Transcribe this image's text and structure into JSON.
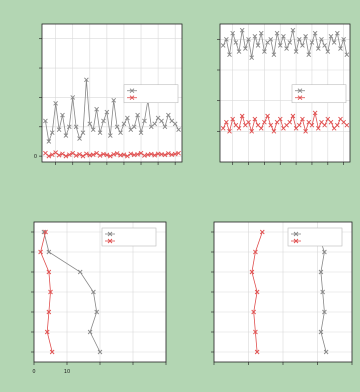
{
  "colors": {
    "background": "#b3d6b3",
    "panel": "#ffffff",
    "grid": "#d9d9d9",
    "series_gray": "#888888",
    "series_red": "#e05050"
  },
  "chart_data": [
    {
      "type": "line",
      "title": "",
      "subtitle": "",
      "xlabel": "",
      "ylabel": "",
      "grid": true,
      "legend": "center-right",
      "x": [
        1,
        2,
        3,
        4,
        5,
        6,
        7,
        8,
        9,
        10,
        11,
        12,
        13,
        14,
        15,
        16,
        17,
        18,
        19,
        20,
        21,
        22,
        23,
        24,
        25,
        26,
        27,
        28,
        29,
        30,
        31,
        32,
        33,
        34,
        35,
        36,
        37,
        38,
        39,
        40
      ],
      "xticks": [
        4,
        9,
        14,
        19,
        24,
        29,
        34,
        39
      ],
      "xticklabels": [
        "",
        "",
        "",
        "",
        "",
        "",
        "",
        ""
      ],
      "ylim": [
        -0.2,
        4.5
      ],
      "yticks": [
        0,
        1,
        2,
        3,
        4
      ],
      "yticklabels": [
        "0",
        "",
        "",
        "",
        ""
      ],
      "series": [
        {
          "name": "",
          "color": "#888888",
          "marker": "x",
          "values": [
            1.2,
            0.5,
            0.8,
            1.8,
            0.9,
            1.4,
            0.7,
            1.0,
            2.0,
            1.0,
            0.6,
            0.8,
            2.6,
            1.1,
            0.9,
            1.6,
            0.8,
            1.2,
            1.5,
            0.7,
            1.9,
            1.0,
            0.8,
            1.1,
            1.3,
            0.9,
            1.0,
            1.4,
            0.8,
            1.2,
            1.9,
            1.0,
            1.1,
            1.3,
            1.2,
            1.0,
            1.4,
            1.2,
            1.1,
            0.9
          ]
        },
        {
          "name": "",
          "color": "#e05050",
          "marker": "x",
          "values": [
            0.1,
            0.0,
            0.05,
            0.12,
            0.03,
            0.08,
            0.0,
            0.05,
            0.1,
            0.02,
            0.06,
            0.0,
            0.08,
            0.03,
            0.05,
            0.1,
            0.02,
            0.07,
            0.04,
            0.0,
            0.06,
            0.09,
            0.03,
            0.05,
            0.0,
            0.08,
            0.04,
            0.06,
            0.1,
            0.02,
            0.05,
            0.07,
            0.03,
            0.08,
            0.06,
            0.04,
            0.09,
            0.05,
            0.07,
            0.1
          ]
        }
      ]
    },
    {
      "type": "line",
      "title": "",
      "subtitle": "",
      "xlabel": "",
      "ylabel": "",
      "grid": true,
      "legend": "center-right",
      "x": [
        1,
        2,
        3,
        4,
        5,
        6,
        7,
        8,
        9,
        10,
        11,
        12,
        13,
        14,
        15,
        16,
        17,
        18,
        19,
        20,
        21,
        22,
        23,
        24,
        25,
        26,
        27,
        28,
        29,
        30,
        31,
        32,
        33,
        34,
        35,
        36,
        37,
        38,
        39,
        40
      ],
      "xticks": [
        4,
        9,
        14,
        19,
        24,
        29,
        34,
        39
      ],
      "xticklabels": [
        "",
        "",
        "",
        "",
        "",
        "",
        "",
        ""
      ],
      "ylim": [
        0,
        4.5
      ],
      "yticks": [
        1,
        2,
        3,
        4
      ],
      "yticklabels": [
        "",
        "",
        "",
        ""
      ],
      "series": [
        {
          "name": "",
          "color": "#888888",
          "marker": "x",
          "values": [
            3.8,
            4.0,
            3.5,
            4.2,
            3.9,
            3.6,
            4.3,
            3.7,
            4.0,
            3.4,
            4.1,
            3.8,
            4.2,
            3.6,
            3.9,
            4.0,
            3.5,
            4.2,
            3.8,
            4.1,
            3.7,
            3.9,
            4.3,
            3.6,
            4.0,
            3.8,
            4.1,
            3.5,
            3.9,
            4.2,
            3.7,
            4.0,
            3.8,
            3.6,
            4.1,
            3.9,
            4.2,
            3.7,
            4.0,
            3.5
          ]
        },
        {
          "name": "",
          "color": "#e05050",
          "marker": "x",
          "values": [
            1.1,
            1.3,
            1.0,
            1.4,
            1.2,
            1.1,
            1.5,
            1.2,
            1.3,
            1.0,
            1.4,
            1.2,
            1.1,
            1.3,
            1.5,
            1.2,
            1.0,
            1.3,
            1.4,
            1.1,
            1.2,
            1.3,
            1.5,
            1.1,
            1.2,
            1.4,
            1.0,
            1.3,
            1.2,
            1.6,
            1.1,
            1.3,
            1.2,
            1.4,
            1.3,
            1.1,
            1.2,
            1.4,
            1.3,
            1.2
          ]
        }
      ]
    },
    {
      "type": "line",
      "title": "",
      "subtitle": "",
      "xlabel": "",
      "ylabel": "",
      "grid": true,
      "legend": "top-right",
      "xlim": [
        0,
        40
      ],
      "xticks": [
        0,
        10,
        20,
        30,
        40
      ],
      "xticklabels": [
        "0",
        "10",
        "",
        "",
        ""
      ],
      "ylim": [
        0.5,
        7.5
      ],
      "yticks": [
        1,
        2,
        3,
        4,
        5,
        6,
        7
      ],
      "yticklabels": [
        "",
        "",
        "",
        "",
        "",
        "",
        ""
      ],
      "series": [
        {
          "name": "",
          "color": "#888888",
          "marker": "x",
          "points": [
            [
              3.0,
              7
            ],
            [
              4.5,
              6
            ],
            [
              14.0,
              5
            ],
            [
              18.0,
              4
            ],
            [
              19.0,
              3
            ],
            [
              17.0,
              2
            ],
            [
              20.0,
              1
            ]
          ]
        },
        {
          "name": "",
          "color": "#e05050",
          "marker": "x",
          "points": [
            [
              3.5,
              7
            ],
            [
              2.0,
              6
            ],
            [
              4.5,
              5
            ],
            [
              5.0,
              4
            ],
            [
              4.5,
              3
            ],
            [
              4.0,
              2
            ],
            [
              5.5,
              1
            ]
          ]
        }
      ]
    },
    {
      "type": "line",
      "title": "",
      "subtitle": "",
      "xlabel": "",
      "ylabel": "",
      "grid": true,
      "legend": "top-right",
      "xlim": [
        0,
        40
      ],
      "xticks": [
        0,
        10,
        20,
        30,
        40
      ],
      "xticklabels": [
        "",
        "",
        "",
        "",
        ""
      ],
      "ylim": [
        0.5,
        7.5
      ],
      "yticks": [
        1,
        2,
        3,
        4,
        5,
        6,
        7
      ],
      "yticklabels": [
        "",
        "",
        "",
        "",
        "",
        "",
        ""
      ],
      "series": [
        {
          "name": "",
          "color": "#888888",
          "marker": "x",
          "points": [
            [
              30.0,
              7
            ],
            [
              32.0,
              6
            ],
            [
              31.0,
              5
            ],
            [
              31.5,
              4
            ],
            [
              32.0,
              3
            ],
            [
              31.0,
              2
            ],
            [
              32.5,
              1
            ]
          ]
        },
        {
          "name": "",
          "color": "#e05050",
          "marker": "x",
          "points": [
            [
              14.0,
              7
            ],
            [
              12.0,
              6
            ],
            [
              11.0,
              5
            ],
            [
              12.5,
              4
            ],
            [
              11.5,
              3
            ],
            [
              12.0,
              2
            ],
            [
              12.5,
              1
            ]
          ]
        }
      ]
    }
  ]
}
